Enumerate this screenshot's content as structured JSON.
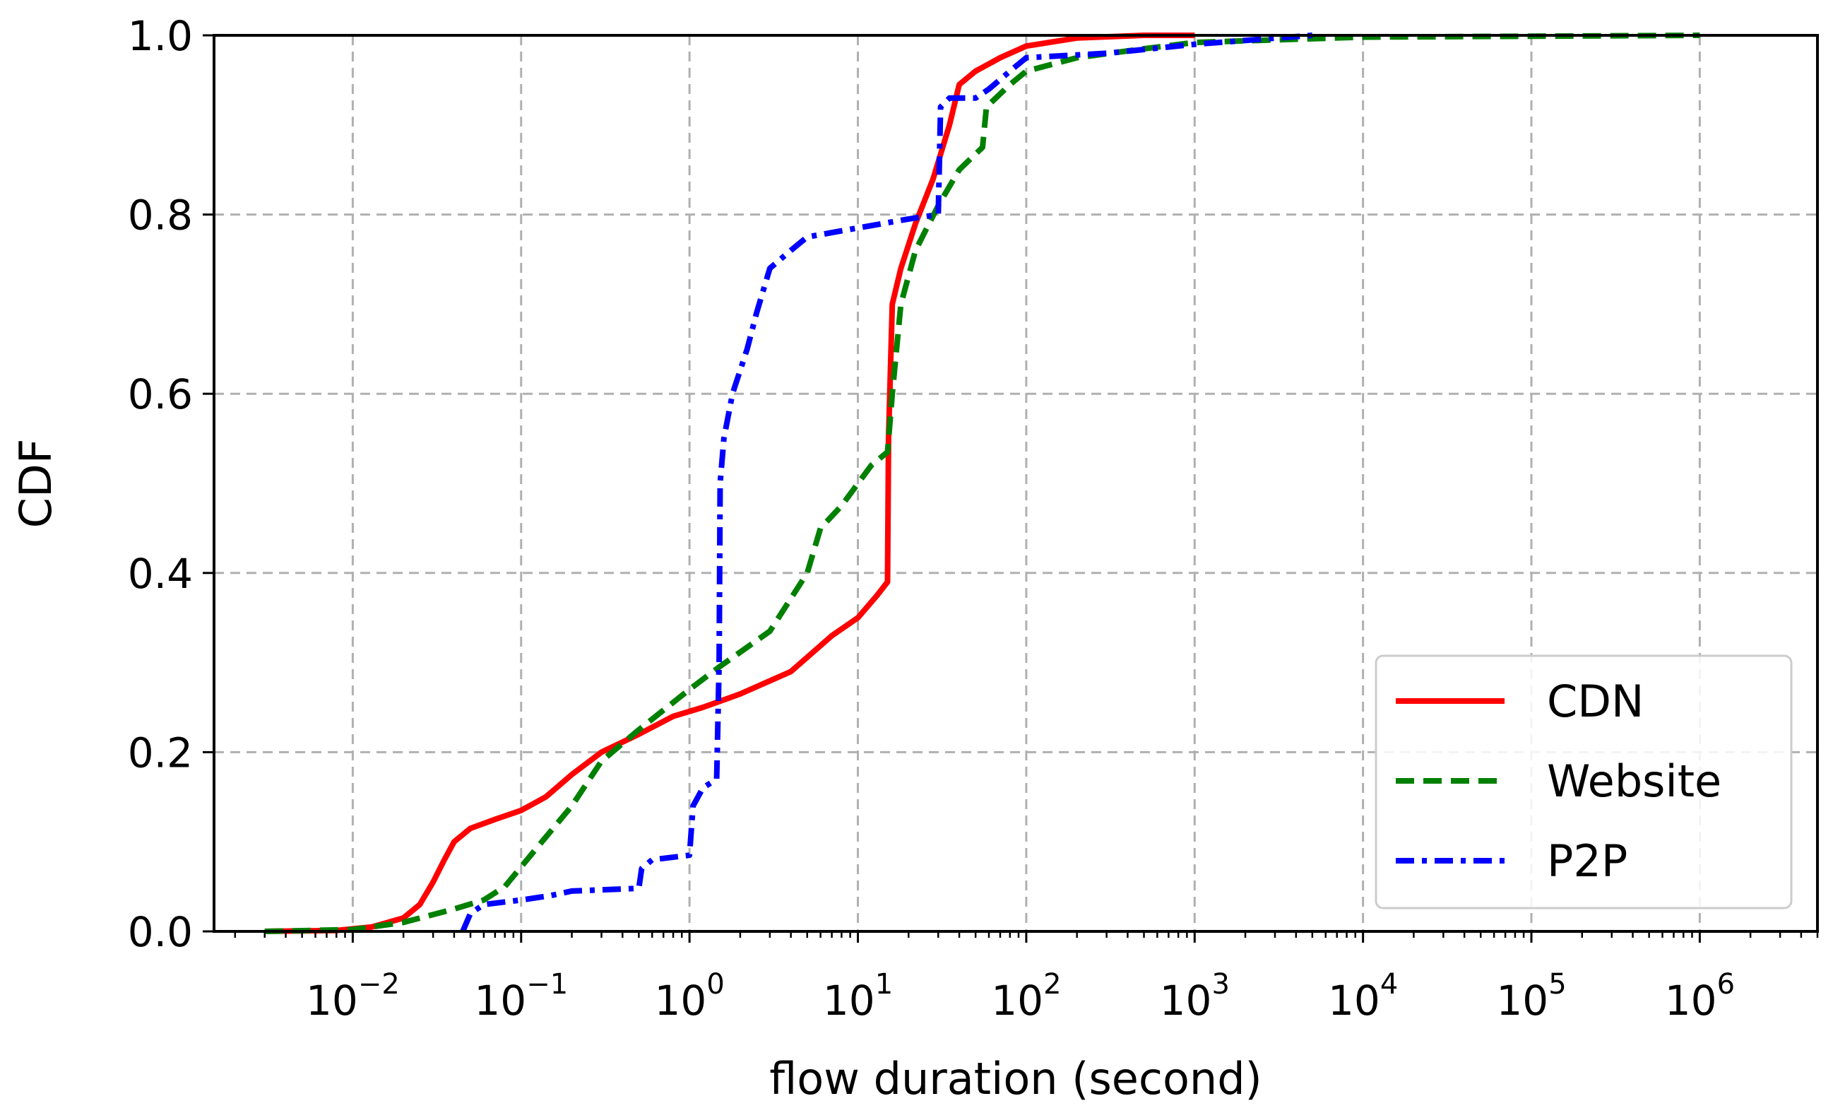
{
  "chart_data": {
    "type": "line",
    "title": "",
    "xlabel": "flow duration (second)",
    "ylabel": "CDF",
    "xscale": "log",
    "xlim": [
      0.0015,
      5000000
    ],
    "ylim": [
      0.0,
      1.0
    ],
    "grid": true,
    "legend_position": "lower-right",
    "x_ticks": [
      {
        "base": "10",
        "exp": "−2",
        "value": 0.01
      },
      {
        "base": "10",
        "exp": "−1",
        "value": 0.1
      },
      {
        "base": "10",
        "exp": "0",
        "value": 1
      },
      {
        "base": "10",
        "exp": "1",
        "value": 10
      },
      {
        "base": "10",
        "exp": "2",
        "value": 100
      },
      {
        "base": "10",
        "exp": "3",
        "value": 1000
      },
      {
        "base": "10",
        "exp": "4",
        "value": 10000
      },
      {
        "base": "10",
        "exp": "5",
        "value": 100000
      },
      {
        "base": "10",
        "exp": "6",
        "value": 1000000
      }
    ],
    "y_ticks": [
      "0.0",
      "0.2",
      "0.4",
      "0.6",
      "0.8",
      "1.0"
    ],
    "series": [
      {
        "name": "CDN",
        "color": "#ff0000",
        "style": "solid",
        "points": [
          [
            0.003,
            0.0
          ],
          [
            0.008,
            0.001
          ],
          [
            0.013,
            0.005
          ],
          [
            0.02,
            0.015
          ],
          [
            0.025,
            0.03
          ],
          [
            0.03,
            0.055
          ],
          [
            0.035,
            0.08
          ],
          [
            0.04,
            0.1
          ],
          [
            0.05,
            0.115
          ],
          [
            0.07,
            0.125
          ],
          [
            0.1,
            0.135
          ],
          [
            0.14,
            0.15
          ],
          [
            0.2,
            0.175
          ],
          [
            0.3,
            0.2
          ],
          [
            0.5,
            0.22
          ],
          [
            0.8,
            0.24
          ],
          [
            1.2,
            0.25
          ],
          [
            2,
            0.265
          ],
          [
            4,
            0.29
          ],
          [
            7,
            0.33
          ],
          [
            10,
            0.35
          ],
          [
            13,
            0.375
          ],
          [
            15,
            0.39
          ],
          [
            15.2,
            0.55
          ],
          [
            16,
            0.7
          ],
          [
            18,
            0.74
          ],
          [
            22,
            0.79
          ],
          [
            28,
            0.84
          ],
          [
            35,
            0.9
          ],
          [
            40,
            0.945
          ],
          [
            50,
            0.96
          ],
          [
            70,
            0.975
          ],
          [
            100,
            0.988
          ],
          [
            200,
            0.997
          ],
          [
            500,
            1.0
          ],
          [
            1000,
            1.0
          ]
        ]
      },
      {
        "name": "Website",
        "color": "#008000",
        "style": "dashed",
        "points": [
          [
            0.003,
            0.0
          ],
          [
            0.01,
            0.002
          ],
          [
            0.02,
            0.01
          ],
          [
            0.04,
            0.025
          ],
          [
            0.06,
            0.035
          ],
          [
            0.08,
            0.05
          ],
          [
            0.12,
            0.09
          ],
          [
            0.2,
            0.14
          ],
          [
            0.3,
            0.19
          ],
          [
            0.5,
            0.225
          ],
          [
            1,
            0.27
          ],
          [
            1.5,
            0.295
          ],
          [
            3,
            0.335
          ],
          [
            5,
            0.4
          ],
          [
            6,
            0.45
          ],
          [
            8,
            0.475
          ],
          [
            12,
            0.52
          ],
          [
            15,
            0.535
          ],
          [
            16,
            0.6
          ],
          [
            18,
            0.7
          ],
          [
            22,
            0.76
          ],
          [
            30,
            0.81
          ],
          [
            40,
            0.85
          ],
          [
            55,
            0.875
          ],
          [
            58,
            0.92
          ],
          [
            80,
            0.945
          ],
          [
            100,
            0.96
          ],
          [
            200,
            0.975
          ],
          [
            500,
            0.985
          ],
          [
            1000,
            0.992
          ],
          [
            10000,
            0.998
          ],
          [
            1000000,
            1.0
          ]
        ]
      },
      {
        "name": "P2P",
        "color": "#0000ff",
        "style": "dashdot",
        "points": [
          [
            0.045,
            0.0
          ],
          [
            0.05,
            0.02
          ],
          [
            0.06,
            0.03
          ],
          [
            0.1,
            0.035
          ],
          [
            0.15,
            0.04
          ],
          [
            0.2,
            0.045
          ],
          [
            0.5,
            0.048
          ],
          [
            0.52,
            0.07
          ],
          [
            0.6,
            0.08
          ],
          [
            1,
            0.085
          ],
          [
            1.05,
            0.14
          ],
          [
            1.2,
            0.16
          ],
          [
            1.45,
            0.17
          ],
          [
            1.5,
            0.3
          ],
          [
            1.52,
            0.5
          ],
          [
            1.6,
            0.55
          ],
          [
            1.8,
            0.6
          ],
          [
            2.2,
            0.65
          ],
          [
            2.5,
            0.69
          ],
          [
            3,
            0.74
          ],
          [
            4,
            0.76
          ],
          [
            5,
            0.775
          ],
          [
            10,
            0.785
          ],
          [
            20,
            0.795
          ],
          [
            30,
            0.8
          ],
          [
            31,
            0.92
          ],
          [
            35,
            0.93
          ],
          [
            50,
            0.93
          ],
          [
            60,
            0.94
          ],
          [
            80,
            0.96
          ],
          [
            100,
            0.975
          ],
          [
            300,
            0.98
          ],
          [
            1000,
            0.99
          ],
          [
            5000,
            1.0
          ]
        ]
      }
    ]
  }
}
